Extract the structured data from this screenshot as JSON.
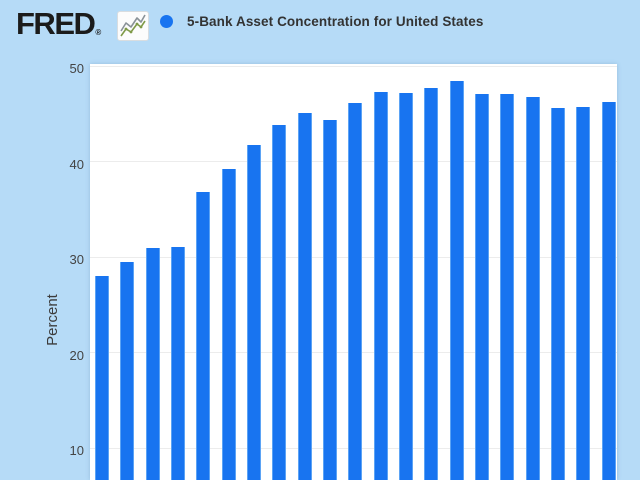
{
  "header": {
    "logo_text": "FRED",
    "registered_mark": "®"
  },
  "legend": {
    "series_label": "5-Bank Asset Concentration for United States",
    "marker_color": "#1874f0"
  },
  "y_axis": {
    "label": "Percent",
    "ticks": [
      "50",
      "40",
      "30",
      "20",
      "10"
    ]
  },
  "colors": {
    "background": "#b6dbf7",
    "plot_background": "#ffffff",
    "bar": "#1874f0",
    "gridline": "#ececec",
    "header_text": "#333333",
    "tick_text": "#444444",
    "logo_text": "#1b1b1b",
    "icon_line_gray": "#8a9298",
    "icon_line_green": "#7f9a48"
  },
  "chart_data": {
    "type": "bar",
    "title": "5-Bank Asset Concentration for United States",
    "xlabel": "",
    "ylabel": "Percent",
    "values": [
      28.0,
      29.4,
      30.9,
      31.0,
      36.8,
      39.2,
      41.7,
      43.8,
      45.0,
      44.3,
      46.1,
      47.2,
      47.1,
      47.6,
      48.4,
      47.0,
      47.0,
      46.7,
      45.6,
      45.7,
      46.2
    ],
    "bar_count": 21,
    "y_ticks": [
      10,
      20,
      30,
      40,
      50
    ],
    "ylim": [
      0,
      50.2
    ],
    "visible_value_range_bottom_cutoff": 6.4,
    "x_axis_labels_visible": false,
    "grid": true,
    "legend_position": "top",
    "series_color": "#1874f0"
  }
}
